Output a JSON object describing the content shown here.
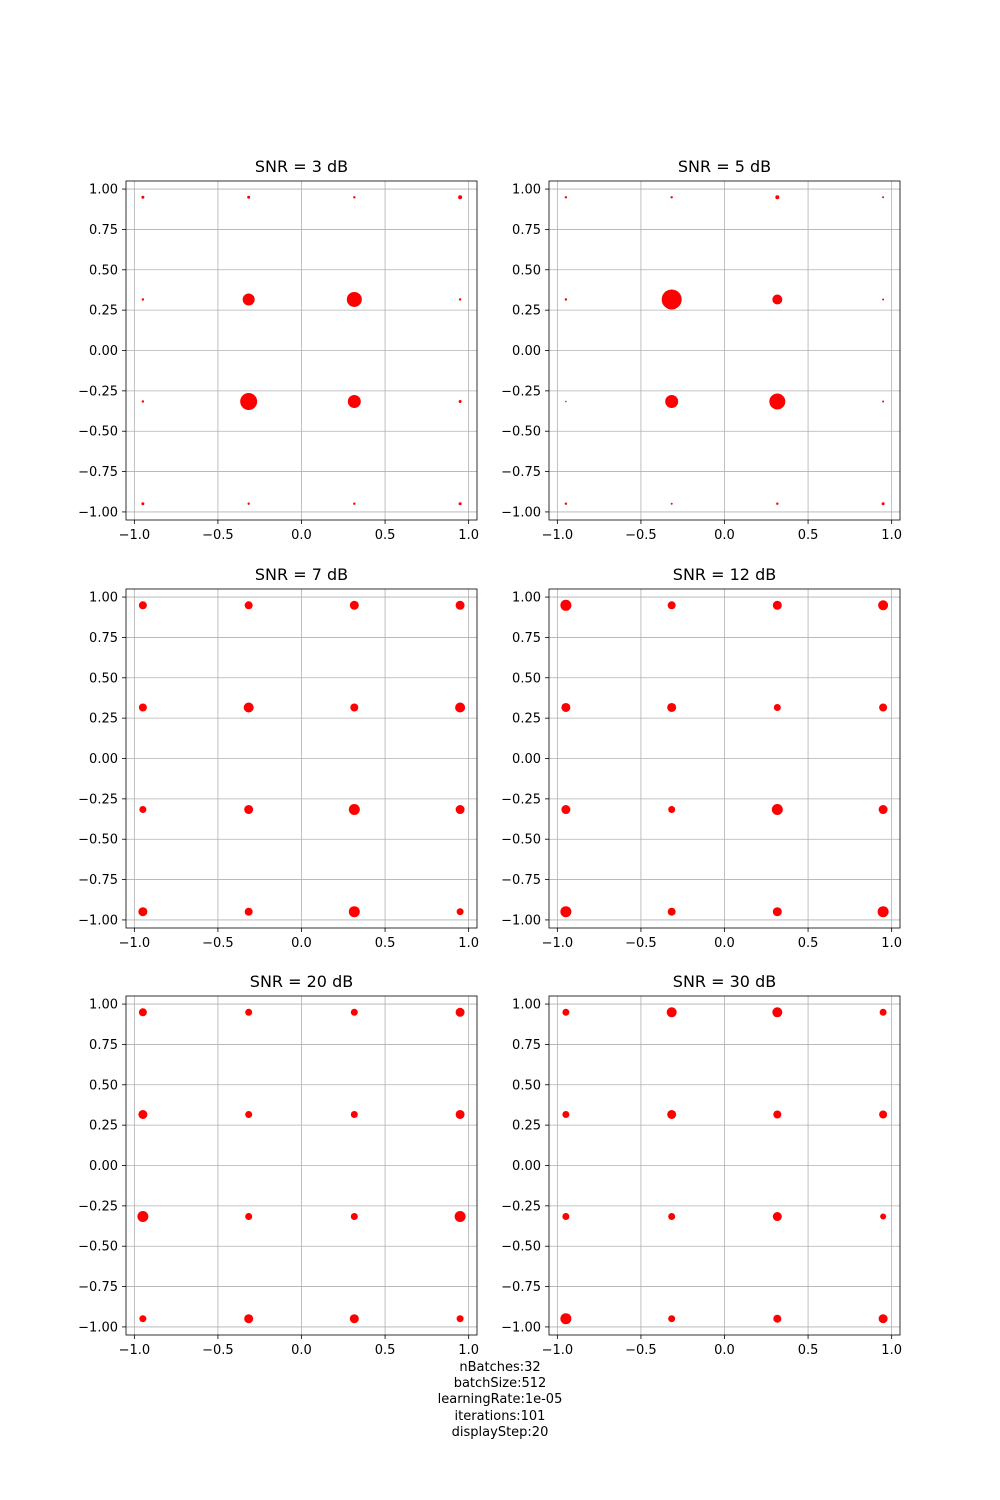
{
  "colors": {
    "marker": "#ff0000",
    "grid": "#b0b0b0",
    "axes": "#000000"
  },
  "chart_data": [
    {
      "type": "scatter",
      "title": "SNR = 3 dB",
      "xlim": [
        -1.05,
        1.05
      ],
      "ylim": [
        -1.05,
        1.05
      ],
      "xticks": [
        "-1.0",
        "-0.5",
        "0.0",
        "0.5",
        "1.0"
      ],
      "yticks": [
        "1.00",
        "0.75",
        "0.50",
        "0.25",
        "0.00",
        "-0.25",
        "-0.50",
        "-0.75",
        "-1.00"
      ],
      "grid": true,
      "x": [
        -0.949,
        -0.316,
        0.316,
        0.949
      ],
      "y": [
        0.949,
        0.316,
        -0.316,
        -0.949
      ],
      "sizes": [
        [
          1.5,
          1.5,
          1.2,
          2
        ],
        [
          1.2,
          6,
          7.5,
          1.2
        ],
        [
          1.2,
          8.5,
          6.5,
          1.5
        ],
        [
          1.5,
          1.2,
          1.2,
          1.5
        ]
      ]
    },
    {
      "type": "scatter",
      "title": "SNR = 5 dB",
      "xlim": [
        -1.05,
        1.05
      ],
      "ylim": [
        -1.05,
        1.05
      ],
      "xticks": [
        "-1.0",
        "-0.5",
        "0.0",
        "0.5",
        "1.0"
      ],
      "yticks": [
        "1.00",
        "0.75",
        "0.50",
        "0.25",
        "0.00",
        "-0.25",
        "-0.50",
        "-0.75",
        "-1.00"
      ],
      "grid": true,
      "x": [
        -0.949,
        -0.316,
        0.316,
        0.949
      ],
      "y": [
        0.949,
        0.316,
        -0.316,
        -0.949
      ],
      "sizes": [
        [
          1.2,
          1.2,
          2,
          1
        ],
        [
          1.2,
          10,
          5,
          1
        ],
        [
          0.8,
          6.5,
          8,
          1
        ],
        [
          1.2,
          1,
          1.2,
          1.5
        ]
      ]
    },
    {
      "type": "scatter",
      "title": "SNR = 7 dB",
      "xlim": [
        -1.05,
        1.05
      ],
      "ylim": [
        -1.05,
        1.05
      ],
      "xticks": [
        "-1.0",
        "-0.5",
        "0.0",
        "0.5",
        "1.0"
      ],
      "yticks": [
        "1.00",
        "0.75",
        "0.50",
        "0.25",
        "0.00",
        "-0.25",
        "-0.50",
        "-0.75",
        "-1.00"
      ],
      "grid": true,
      "x": [
        -0.949,
        -0.316,
        0.316,
        0.949
      ],
      "y": [
        0.949,
        0.316,
        -0.316,
        -0.949
      ],
      "sizes": [
        [
          4,
          4,
          4.5,
          4.5
        ],
        [
          4,
          5,
          4,
          5
        ],
        [
          3.5,
          4.5,
          5.5,
          4.5
        ],
        [
          4.5,
          4,
          5.5,
          3.5
        ]
      ]
    },
    {
      "type": "scatter",
      "title": "SNR = 12 dB",
      "xlim": [
        -1.05,
        1.05
      ],
      "ylim": [
        -1.05,
        1.05
      ],
      "xticks": [
        "-1.0",
        "-0.5",
        "0.0",
        "0.5",
        "1.0"
      ],
      "yticks": [
        "1.00",
        "0.75",
        "0.50",
        "0.25",
        "0.00",
        "-0.25",
        "-0.50",
        "-0.75",
        "-1.00"
      ],
      "grid": true,
      "x": [
        -0.949,
        -0.316,
        0.316,
        0.949
      ],
      "y": [
        0.949,
        0.316,
        -0.316,
        -0.949
      ],
      "sizes": [
        [
          5.5,
          4,
          4.5,
          5
        ],
        [
          4.5,
          4.5,
          3.5,
          4
        ],
        [
          4.5,
          3.5,
          5.5,
          4.5
        ],
        [
          5.5,
          4,
          4.5,
          5.5
        ]
      ]
    },
    {
      "type": "scatter",
      "title": "SNR = 20 dB",
      "xlim": [
        -1.05,
        1.05
      ],
      "ylim": [
        -1.05,
        1.05
      ],
      "xticks": [
        "-1.0",
        "-0.5",
        "0.0",
        "0.5",
        "1.0"
      ],
      "yticks": [
        "1.00",
        "0.75",
        "0.50",
        "0.25",
        "0.00",
        "-0.25",
        "-0.50",
        "-0.75",
        "-1.00"
      ],
      "grid": true,
      "x": [
        -0.949,
        -0.316,
        0.316,
        0.949
      ],
      "y": [
        0.949,
        0.316,
        -0.316,
        -0.949
      ],
      "sizes": [
        [
          4,
          3.5,
          3.5,
          4.5
        ],
        [
          4.5,
          3.5,
          3.5,
          4.5
        ],
        [
          5.5,
          3.5,
          3.5,
          5.5
        ],
        [
          3.5,
          4.5,
          4.5,
          3.5
        ]
      ]
    },
    {
      "type": "scatter",
      "title": "SNR = 30 dB",
      "xlim": [
        -1.05,
        1.05
      ],
      "ylim": [
        -1.05,
        1.05
      ],
      "xticks": [
        "-1.0",
        "-0.5",
        "0.0",
        "0.5",
        "1.0"
      ],
      "yticks": [
        "1.00",
        "0.75",
        "0.50",
        "0.25",
        "0.00",
        "-0.25",
        "-0.50",
        "-0.75",
        "-1.00"
      ],
      "grid": true,
      "x": [
        -0.949,
        -0.316,
        0.316,
        0.949
      ],
      "y": [
        0.949,
        0.316,
        -0.316,
        -0.949
      ],
      "sizes": [
        [
          3.5,
          5,
          5,
          3.5
        ],
        [
          3.5,
          4.5,
          4,
          4
        ],
        [
          3.5,
          3.5,
          4.5,
          3
        ],
        [
          5.5,
          3.5,
          4,
          4.5
        ]
      ]
    }
  ],
  "caption": {
    "line1": "nBatches:32",
    "line2": "batchSize:512",
    "line3": "learningRate:1e-05",
    "line4": "iterations:101",
    "line5": "displayStep:20"
  }
}
